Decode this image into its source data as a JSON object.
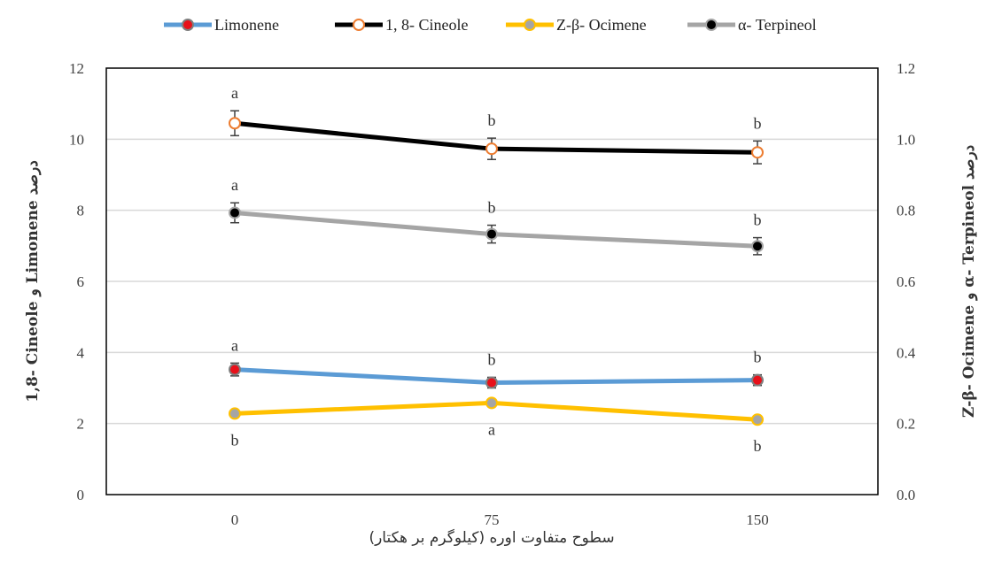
{
  "chart_data": {
    "type": "line",
    "x_title": "سطوح متفاوت اوره (کیلوگرم بر هکتار)",
    "y_left_title": "1,8- Cineole و Limonene درصد",
    "y_right_title": "Z-β- Ocimene و α- Terpineol درصد",
    "categories": [
      "0",
      "75",
      "150"
    ],
    "y_left_range": [
      0,
      12
    ],
    "y_left_ticks": [
      "0",
      "2",
      "4",
      "6",
      "8",
      "10",
      "12"
    ],
    "y_right_range": [
      0,
      1.2
    ],
    "y_right_ticks": [
      "0.0",
      "0.2",
      "0.4",
      "0.6",
      "0.8",
      "1.0",
      "1.2"
    ],
    "grid": true,
    "legend_position": "top",
    "series": [
      {
        "name": "Limonene",
        "axis": "left",
        "values": [
          3.52,
          3.15,
          3.22
        ],
        "errors": [
          0.18,
          0.15,
          0.15
        ],
        "letters": [
          "a",
          "b",
          "b"
        ],
        "letter_pos": [
          "above",
          "above",
          "above"
        ],
        "line_color": "#5B9BD5",
        "marker_fill": "#E8101A",
        "marker_stroke": "#7F7F7F"
      },
      {
        "name": "1, 8- Cineole",
        "axis": "left",
        "values": [
          10.45,
          9.73,
          9.63
        ],
        "errors": [
          0.35,
          0.3,
          0.32
        ],
        "letters": [
          "a",
          "b",
          "b"
        ],
        "letter_pos": [
          "above",
          "above",
          "above"
        ],
        "line_color": "#000000",
        "marker_fill": "#FFFFFF",
        "marker_stroke": "#ED7D31"
      },
      {
        "name": "Z-β- Ocimene",
        "axis": "right",
        "values": [
          0.228,
          0.258,
          0.211
        ],
        "errors": [
          0.007,
          0.007,
          0.007
        ],
        "letters": [
          "b",
          "a",
          "b"
        ],
        "letter_pos": [
          "below",
          "below",
          "below"
        ],
        "line_color": "#FFC000",
        "marker_fill": "#A5A5A5",
        "marker_stroke": "#FFC000"
      },
      {
        "name": "α- Terpineol",
        "axis": "right",
        "values": [
          0.793,
          0.733,
          0.699
        ],
        "errors": [
          0.028,
          0.025,
          0.024
        ],
        "letters": [
          "a",
          "b",
          "b"
        ],
        "letter_pos": [
          "above",
          "above",
          "above"
        ],
        "line_color": "#A5A5A5",
        "marker_fill": "#000000",
        "marker_stroke": "#A5A5A5"
      }
    ]
  }
}
